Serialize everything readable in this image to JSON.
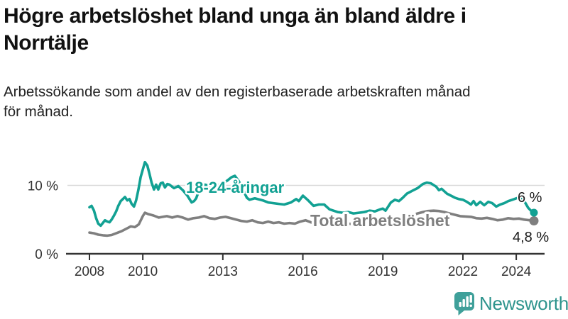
{
  "title_lines": [
    "Högre arbetslöshet bland unga än bland äldre i",
    "Norrtälje"
  ],
  "subtitle_lines": [
    "Arbetssökande som andel av den registerbaserade arbetskraften månad",
    "för månad."
  ],
  "colors": {
    "youth_line": "#12A193",
    "total_line": "#7F7F7F",
    "gridline": "#D9D9D9",
    "axis": "#333333",
    "title_text": "#111111",
    "logo_icon": "#3FA09A",
    "logo_text": "#2E948D"
  },
  "chart_data": {
    "type": "line",
    "xlabel": "",
    "ylabel": "",
    "xlim": [
      2007.85,
      2025.05
    ],
    "ylim": [
      0,
      14
    ],
    "x_ticks": [
      2008,
      2010,
      2013,
      2016,
      2019,
      2022,
      2024
    ],
    "y_ticks": [
      {
        "value": 10,
        "label": "10 %"
      },
      {
        "value": 0,
        "label": "0 %"
      }
    ],
    "gridline_values": [
      10
    ],
    "legend_position": "inline-labels",
    "series": [
      {
        "name": "18-24-åringar",
        "color": "#12A193",
        "end_value": 6.0,
        "end_label": "6 %",
        "points": [
          [
            2008.0,
            6.8
          ],
          [
            2008.08,
            7.0
          ],
          [
            2008.17,
            6.3
          ],
          [
            2008.25,
            5.2
          ],
          [
            2008.33,
            4.4
          ],
          [
            2008.42,
            4.1
          ],
          [
            2008.5,
            4.5
          ],
          [
            2008.58,
            4.9
          ],
          [
            2008.67,
            4.7
          ],
          [
            2008.75,
            4.6
          ],
          [
            2008.83,
            5.0
          ],
          [
            2008.92,
            5.6
          ],
          [
            2009.0,
            6.2
          ],
          [
            2009.08,
            7.0
          ],
          [
            2009.17,
            7.7
          ],
          [
            2009.33,
            8.3
          ],
          [
            2009.42,
            7.8
          ],
          [
            2009.5,
            8.0
          ],
          [
            2009.58,
            7.3
          ],
          [
            2009.67,
            6.9
          ],
          [
            2009.75,
            7.8
          ],
          [
            2009.83,
            9.3
          ],
          [
            2009.92,
            11.2
          ],
          [
            2010.0,
            12.3
          ],
          [
            2010.08,
            13.4
          ],
          [
            2010.17,
            12.9
          ],
          [
            2010.25,
            11.7
          ],
          [
            2010.33,
            10.4
          ],
          [
            2010.42,
            9.4
          ],
          [
            2010.5,
            10.1
          ],
          [
            2010.58,
            9.4
          ],
          [
            2010.67,
            10.3
          ],
          [
            2010.75,
            10.4
          ],
          [
            2010.83,
            9.7
          ],
          [
            2010.92,
            10.2
          ],
          [
            2011.0,
            10.1
          ],
          [
            2011.17,
            9.6
          ],
          [
            2011.33,
            9.9
          ],
          [
            2011.5,
            9.3
          ],
          [
            2011.67,
            8.5
          ],
          [
            2011.83,
            7.5
          ],
          [
            2011.92,
            7.7
          ],
          [
            2012.0,
            8.1
          ],
          [
            2012.17,
            9.9
          ],
          [
            2012.33,
            10.1
          ],
          [
            2012.5,
            9.9
          ],
          [
            2012.67,
            10.3
          ],
          [
            2012.83,
            10.0
          ],
          [
            2013.0,
            10.3
          ],
          [
            2013.17,
            10.7
          ],
          [
            2013.33,
            11.2
          ],
          [
            2013.45,
            11.4
          ],
          [
            2013.6,
            10.6
          ],
          [
            2013.75,
            9.4
          ],
          [
            2013.9,
            8.2
          ],
          [
            2014.0,
            7.9
          ],
          [
            2014.2,
            8.1
          ],
          [
            2014.5,
            7.8
          ],
          [
            2014.7,
            7.5
          ],
          [
            2014.9,
            7.4
          ],
          [
            2015.1,
            7.3
          ],
          [
            2015.3,
            7.2
          ],
          [
            2015.55,
            7.5
          ],
          [
            2015.75,
            8.0
          ],
          [
            2015.85,
            7.7
          ],
          [
            2016.0,
            8.5
          ],
          [
            2016.2,
            7.8
          ],
          [
            2016.4,
            7.0
          ],
          [
            2016.6,
            7.2
          ],
          [
            2016.8,
            7.2
          ],
          [
            2017.0,
            6.5
          ],
          [
            2017.15,
            6.3
          ],
          [
            2017.3,
            6.1
          ],
          [
            2017.5,
            6.0
          ],
          [
            2017.7,
            6.1
          ],
          [
            2017.9,
            5.9
          ],
          [
            2018.1,
            6.0
          ],
          [
            2018.3,
            6.1
          ],
          [
            2018.5,
            6.3
          ],
          [
            2018.7,
            6.2
          ],
          [
            2018.9,
            6.5
          ],
          [
            2019.0,
            6.6
          ],
          [
            2019.1,
            6.3
          ],
          [
            2019.3,
            7.5
          ],
          [
            2019.45,
            7.9
          ],
          [
            2019.6,
            7.7
          ],
          [
            2019.75,
            8.2
          ],
          [
            2019.9,
            8.8
          ],
          [
            2020.1,
            9.2
          ],
          [
            2020.3,
            9.6
          ],
          [
            2020.5,
            10.2
          ],
          [
            2020.65,
            10.4
          ],
          [
            2020.8,
            10.3
          ],
          [
            2021.0,
            9.8
          ],
          [
            2021.1,
            9.3
          ],
          [
            2021.2,
            9.5
          ],
          [
            2021.4,
            8.8
          ],
          [
            2021.55,
            8.5
          ],
          [
            2021.7,
            8.2
          ],
          [
            2021.85,
            8.0
          ],
          [
            2022.0,
            7.9
          ],
          [
            2022.15,
            7.6
          ],
          [
            2022.3,
            7.2
          ],
          [
            2022.4,
            7.7
          ],
          [
            2022.5,
            7.1
          ],
          [
            2022.65,
            7.6
          ],
          [
            2022.8,
            7.1
          ],
          [
            2022.95,
            7.6
          ],
          [
            2023.1,
            7.4
          ],
          [
            2023.25,
            6.9
          ],
          [
            2023.4,
            7.2
          ],
          [
            2023.55,
            7.4
          ],
          [
            2023.7,
            7.7
          ],
          [
            2023.85,
            7.9
          ],
          [
            2024.0,
            8.1
          ],
          [
            2024.15,
            8.3
          ],
          [
            2024.3,
            7.7
          ],
          [
            2024.45,
            6.7
          ],
          [
            2024.6,
            6.1
          ],
          [
            2024.67,
            6.0
          ]
        ]
      },
      {
        "name": "Total arbetslöshet",
        "color": "#7F7F7F",
        "end_value": 4.8,
        "end_label": "4,8 %",
        "points": [
          [
            2008.0,
            3.1
          ],
          [
            2008.17,
            3.0
          ],
          [
            2008.33,
            2.8
          ],
          [
            2008.5,
            2.7
          ],
          [
            2008.67,
            2.65
          ],
          [
            2008.83,
            2.75
          ],
          [
            2009.0,
            3.0
          ],
          [
            2009.2,
            3.3
          ],
          [
            2009.4,
            3.7
          ],
          [
            2009.55,
            4.0
          ],
          [
            2009.7,
            3.9
          ],
          [
            2009.85,
            4.3
          ],
          [
            2010.0,
            5.5
          ],
          [
            2010.08,
            6.0
          ],
          [
            2010.2,
            5.8
          ],
          [
            2010.4,
            5.6
          ],
          [
            2010.6,
            5.3
          ],
          [
            2010.75,
            5.4
          ],
          [
            2010.9,
            5.5
          ],
          [
            2011.1,
            5.3
          ],
          [
            2011.3,
            5.5
          ],
          [
            2011.5,
            5.3
          ],
          [
            2011.7,
            5.0
          ],
          [
            2011.9,
            5.2
          ],
          [
            2012.1,
            5.3
          ],
          [
            2012.3,
            5.5
          ],
          [
            2012.5,
            5.2
          ],
          [
            2012.7,
            5.1
          ],
          [
            2012.9,
            5.3
          ],
          [
            2013.1,
            5.4
          ],
          [
            2013.3,
            5.2
          ],
          [
            2013.5,
            5.0
          ],
          [
            2013.7,
            4.8
          ],
          [
            2013.9,
            4.7
          ],
          [
            2014.1,
            4.9
          ],
          [
            2014.3,
            4.6
          ],
          [
            2014.5,
            4.5
          ],
          [
            2014.7,
            4.7
          ],
          [
            2014.9,
            4.5
          ],
          [
            2015.1,
            4.6
          ],
          [
            2015.3,
            4.4
          ],
          [
            2015.5,
            4.5
          ],
          [
            2015.7,
            4.4
          ],
          [
            2015.9,
            4.7
          ],
          [
            2016.1,
            4.9
          ],
          [
            2016.3,
            4.6
          ],
          [
            2016.5,
            4.4
          ],
          [
            2016.7,
            4.4
          ],
          [
            2016.9,
            4.3
          ],
          [
            2017.1,
            4.4
          ],
          [
            2017.4,
            4.3
          ],
          [
            2017.7,
            4.4
          ],
          [
            2018.0,
            4.3
          ],
          [
            2018.3,
            4.4
          ],
          [
            2018.6,
            4.4
          ],
          [
            2018.9,
            4.5
          ],
          [
            2019.1,
            4.5
          ],
          [
            2019.4,
            4.7
          ],
          [
            2019.7,
            4.9
          ],
          [
            2019.9,
            5.2
          ],
          [
            2020.1,
            5.6
          ],
          [
            2020.3,
            5.9
          ],
          [
            2020.5,
            6.1
          ],
          [
            2020.7,
            6.25
          ],
          [
            2020.9,
            6.3
          ],
          [
            2021.1,
            6.25
          ],
          [
            2021.3,
            6.1
          ],
          [
            2021.5,
            5.9
          ],
          [
            2021.7,
            5.7
          ],
          [
            2021.9,
            5.5
          ],
          [
            2022.1,
            5.45
          ],
          [
            2022.3,
            5.4
          ],
          [
            2022.5,
            5.2
          ],
          [
            2022.7,
            5.15
          ],
          [
            2022.9,
            5.25
          ],
          [
            2023.1,
            5.1
          ],
          [
            2023.3,
            4.9
          ],
          [
            2023.5,
            5.0
          ],
          [
            2023.7,
            5.2
          ],
          [
            2023.9,
            5.1
          ],
          [
            2024.1,
            5.15
          ],
          [
            2024.3,
            5.0
          ],
          [
            2024.5,
            4.9
          ],
          [
            2024.67,
            4.8
          ]
        ]
      }
    ]
  },
  "footer": {
    "brand": "Newsworthy",
    "logo_icon": "bar-chart-speech-bubble"
  }
}
